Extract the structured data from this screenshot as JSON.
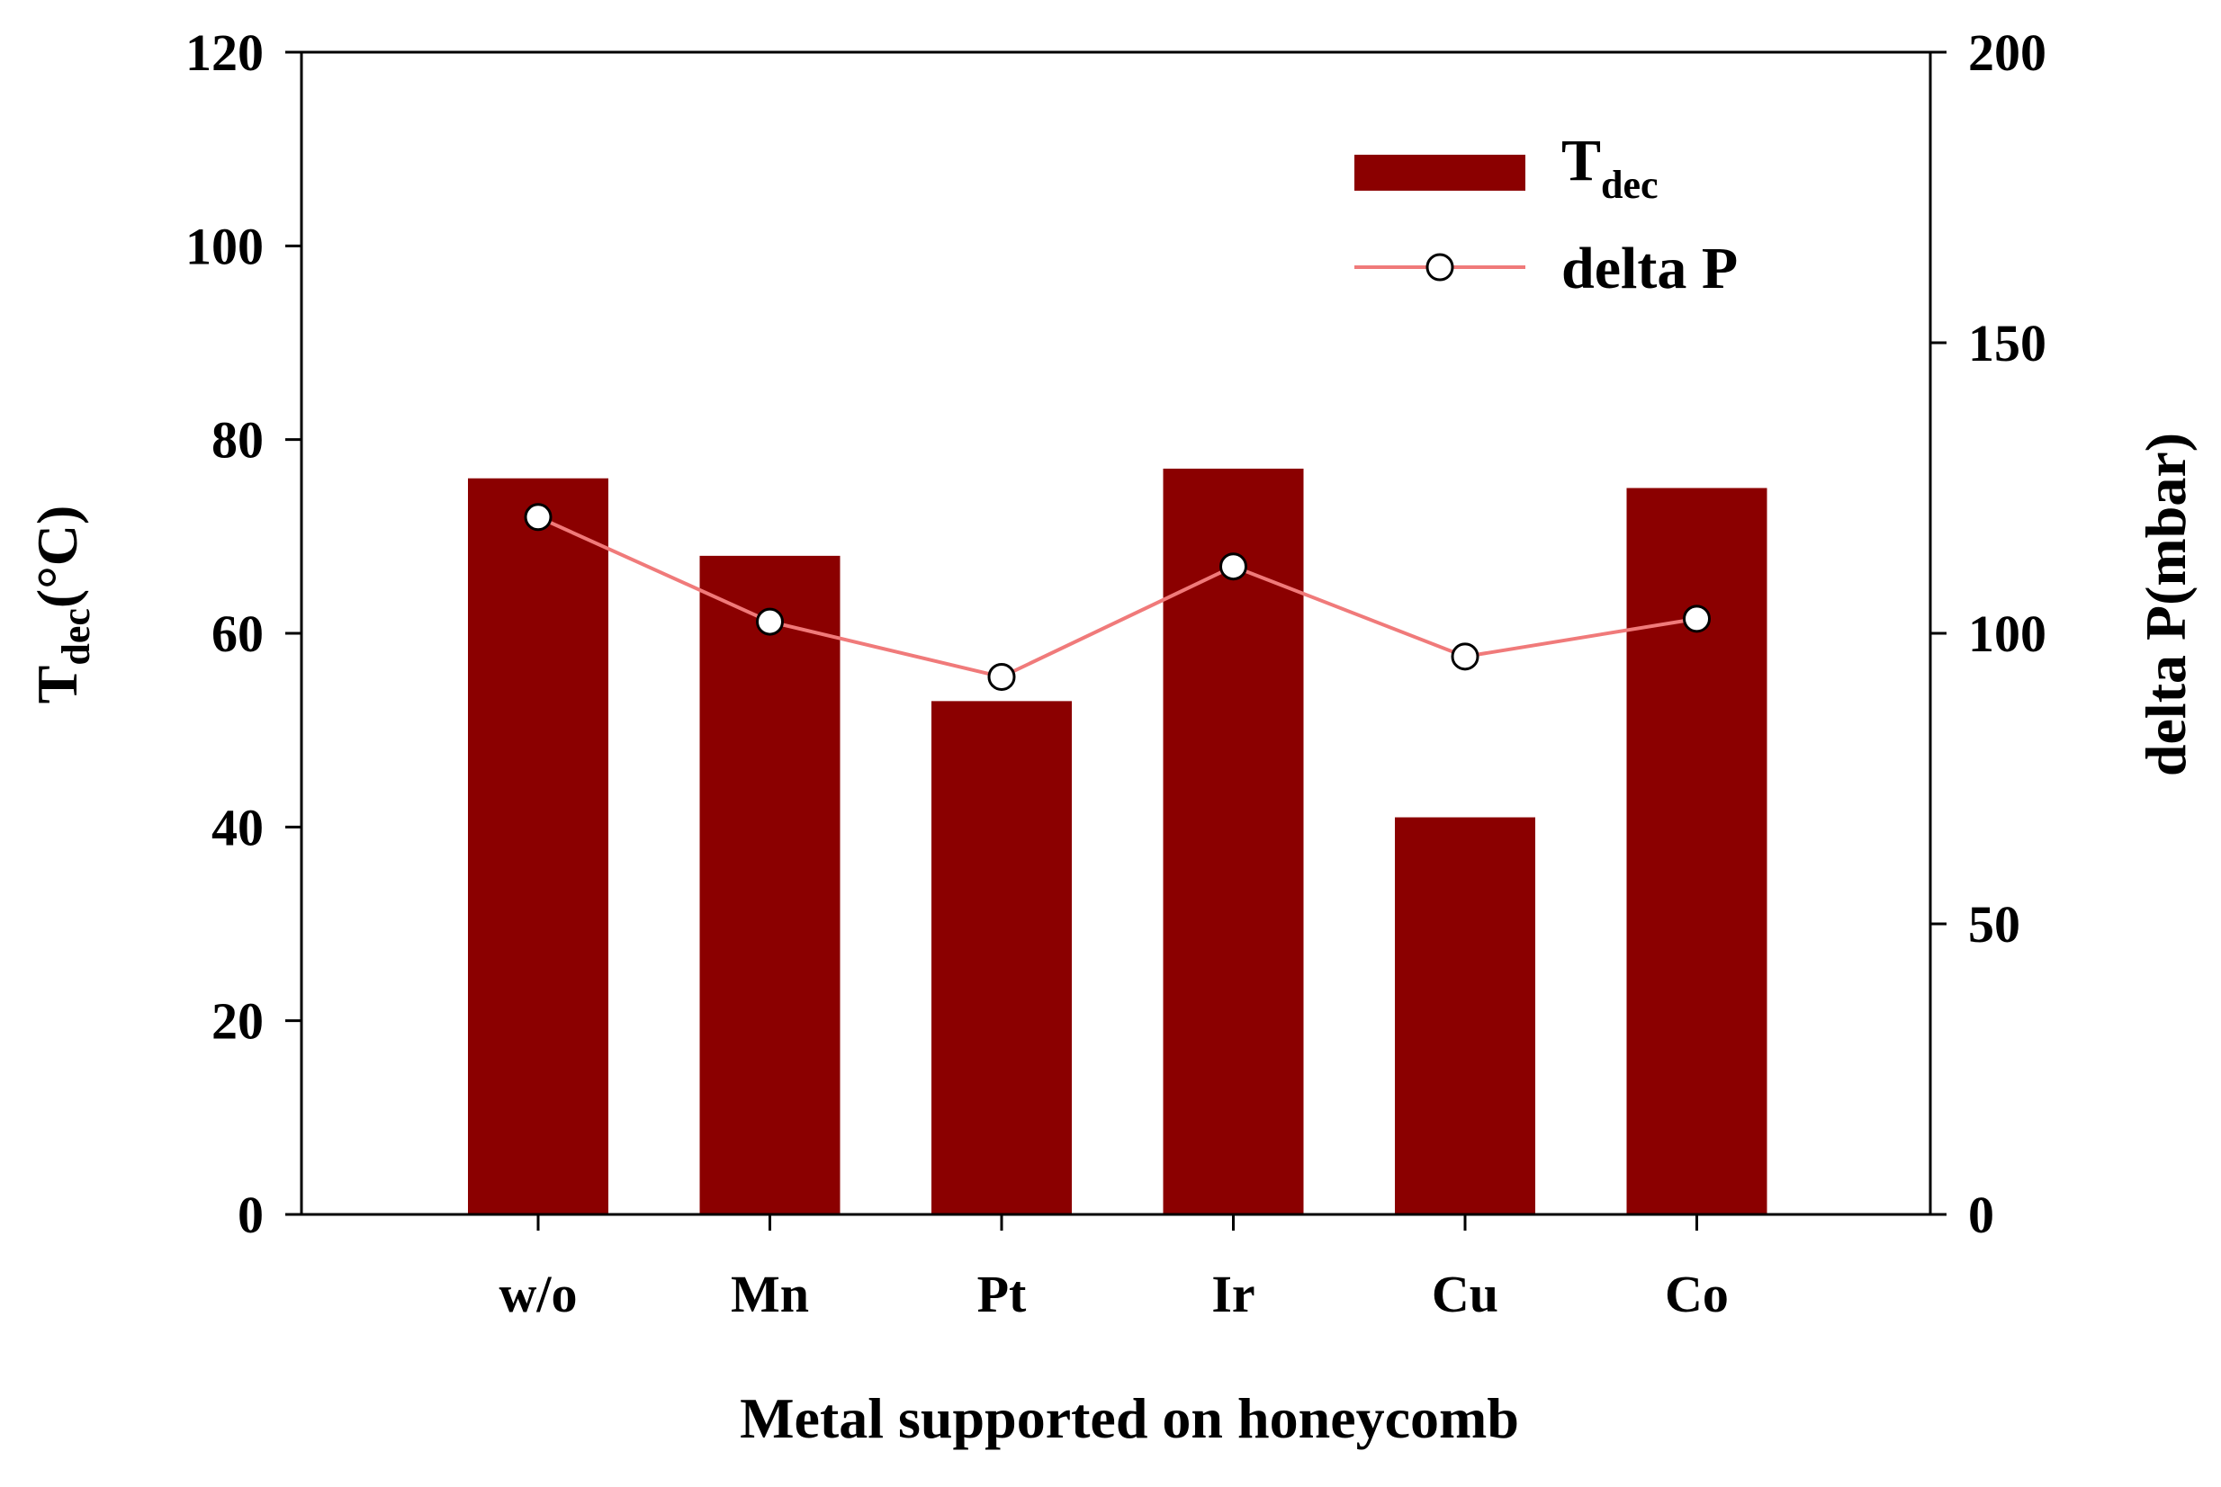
{
  "chart_data": {
    "type": "bar",
    "categories": [
      "w/o",
      "Mn",
      "Pt",
      "Ir",
      "Cu",
      "Co"
    ],
    "series": [
      {
        "name": "T",
        "name_subscript": "dec",
        "type": "bar",
        "axis": "left",
        "values": [
          76,
          68,
          53,
          77,
          41,
          75
        ],
        "color": "#8b0000"
      },
      {
        "name": "delta P",
        "type": "line",
        "axis": "right",
        "values": [
          120,
          102,
          92.5,
          111.5,
          96,
          102.5
        ],
        "color": "#f07a7a",
        "marker_fill": "#ffffff"
      }
    ],
    "xlabel": "Metal supported on honeycomb",
    "ylabel": {
      "main": "T",
      "sub": "dec",
      "suffix": "(°C)"
    },
    "y2label": "delta P(mbar)",
    "ylim": [
      0,
      120
    ],
    "y2lim": [
      0,
      200
    ],
    "yticks": [
      "0",
      "20",
      "40",
      "60",
      "80",
      "100",
      "120"
    ],
    "y2ticks": [
      "0",
      "50",
      "100",
      "150",
      "200"
    ],
    "grid": false,
    "legend_position": "top-right"
  }
}
